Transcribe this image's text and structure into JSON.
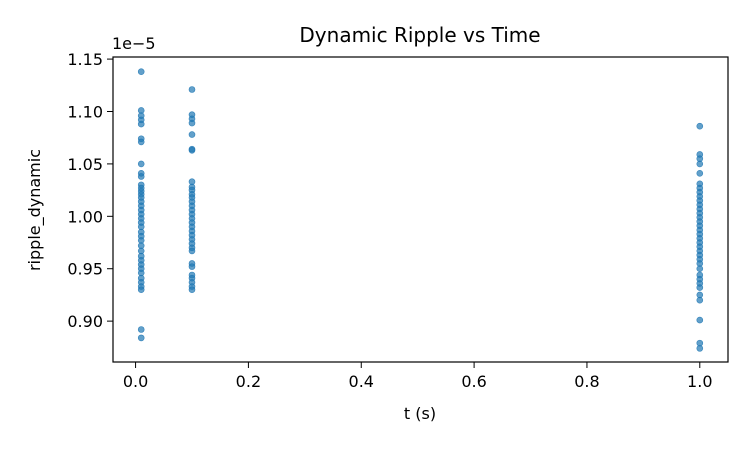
{
  "chart_data": {
    "type": "scatter",
    "title": "Dynamic Ripple vs Time",
    "xlabel": "t (s)",
    "ylabel": "ripple_dynamic",
    "y_offset_label": "1e−5",
    "xlim": [
      -0.04,
      1.05
    ],
    "ylim": [
      0.861,
      1.152
    ],
    "grid": false,
    "x_ticks": [
      0.0,
      0.2,
      0.4,
      0.6,
      0.8,
      1.0
    ],
    "x_tick_labels": [
      "0.0",
      "0.2",
      "0.4",
      "0.6",
      "0.8",
      "1.0"
    ],
    "y_ticks": [
      0.9,
      0.95,
      1.0,
      1.05,
      1.1,
      1.15
    ],
    "y_tick_labels": [
      "0.90",
      "0.95",
      "1.00",
      "1.05",
      "1.10",
      "1.15"
    ],
    "marker_color": "#1f77b4",
    "series": [
      {
        "x": 0.01,
        "values": [
          1.138,
          1.101,
          1.096,
          1.092,
          1.088,
          1.074,
          1.071,
          1.05,
          1.041,
          1.038,
          1.03,
          1.027,
          1.024,
          1.021,
          1.018,
          1.014,
          1.01,
          1.006,
          1.002,
          0.998,
          0.994,
          0.99,
          0.985,
          0.981,
          0.977,
          0.972,
          0.967,
          0.962,
          0.958,
          0.954,
          0.95,
          0.946,
          0.941,
          0.937,
          0.933,
          0.93,
          0.892,
          0.884
        ]
      },
      {
        "x": 0.1,
        "values": [
          1.121,
          1.097,
          1.093,
          1.089,
          1.078,
          1.064,
          1.063,
          1.033,
          1.028,
          1.025,
          1.021,
          1.018,
          1.014,
          1.01,
          1.006,
          1.002,
          0.998,
          0.994,
          0.99,
          0.986,
          0.982,
          0.978,
          0.974,
          0.97,
          0.967,
          0.955,
          0.952,
          0.944,
          0.941,
          0.937,
          0.933,
          0.93
        ]
      },
      {
        "x": 1.0,
        "values": [
          1.086,
          1.059,
          1.055,
          1.05,
          1.041,
          1.031,
          1.027,
          1.023,
          1.019,
          1.015,
          1.011,
          1.007,
          1.003,
          0.999,
          0.995,
          0.991,
          0.987,
          0.983,
          0.979,
          0.975,
          0.971,
          0.967,
          0.963,
          0.959,
          0.955,
          0.95,
          0.944,
          0.94,
          0.936,
          0.932,
          0.925,
          0.92,
          0.901,
          0.879,
          0.874
        ]
      }
    ]
  }
}
